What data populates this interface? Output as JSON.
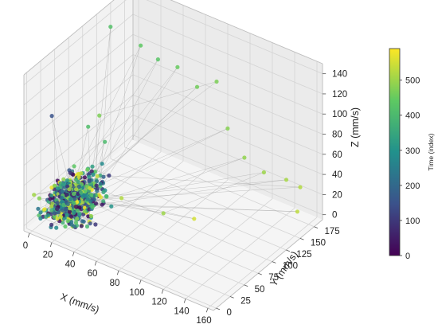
{
  "chart_data": {
    "type": "scatter",
    "projection": "3d",
    "title": "",
    "xlabel": "X (mm/s)",
    "ylabel": "Y (mm/s)",
    "zlabel": "Z (mm/s)",
    "xlim": [
      -5,
      165
    ],
    "ylim": [
      -5,
      190
    ],
    "zlim": [
      -5,
      150
    ],
    "xticks": [
      "0",
      "20",
      "40",
      "60",
      "80",
      "100",
      "120",
      "140",
      "160"
    ],
    "yticks": [
      "0",
      "25",
      "50",
      "75",
      "100",
      "125",
      "150",
      "175"
    ],
    "zticks": [
      "0",
      "20",
      "40",
      "60",
      "80",
      "100",
      "120",
      "140"
    ],
    "grid": true,
    "connecting_line": true,
    "colormap": "viridis",
    "colormap_stops": [
      "#440154",
      "#3b528b",
      "#21918c",
      "#5ec962",
      "#fde725"
    ],
    "color_value": "Time (index)",
    "colorbar": {
      "label": "Time (index)",
      "range": [
        0,
        590
      ],
      "ticks": [
        "0",
        "100",
        "200",
        "300",
        "400",
        "500"
      ],
      "placement": "right"
    },
    "n_points": 600,
    "cluster": {
      "x_range": [
        0,
        50
      ],
      "y_range": [
        0,
        100
      ],
      "z_range": [
        0,
        45
      ],
      "note": "dense cluster of low-velocity samples"
    },
    "outlier_points": [
      {
        "x": 5,
        "y": 130,
        "z": 140,
        "t": 420
      },
      {
        "x": 22,
        "y": 150,
        "z": 120,
        "t": 440
      },
      {
        "x": 35,
        "y": 155,
        "z": 110,
        "t": 430
      },
      {
        "x": 45,
        "y": 170,
        "z": 100,
        "t": 450
      },
      {
        "x": 60,
        "y": 175,
        "z": 85,
        "t": 460
      },
      {
        "x": 75,
        "y": 180,
        "z": 95,
        "t": 470
      },
      {
        "x": 90,
        "y": 170,
        "z": 60,
        "t": 480
      },
      {
        "x": 110,
        "y": 160,
        "z": 45,
        "t": 490
      },
      {
        "x": 125,
        "y": 165,
        "z": 35,
        "t": 500
      },
      {
        "x": 140,
        "y": 175,
        "z": 30,
        "t": 510
      },
      {
        "x": 150,
        "y": 180,
        "z": 25,
        "t": 520
      },
      {
        "x": 155,
        "y": 165,
        "z": 10,
        "t": 530
      },
      {
        "x": 20,
        "y": 60,
        "z": 80,
        "t": 410
      },
      {
        "x": 30,
        "y": 70,
        "z": 65,
        "t": 405
      },
      {
        "x": 5,
        "y": 25,
        "z": 100,
        "t": 150
      },
      {
        "x": 15,
        "y": 90,
        "z": 75,
        "t": 470
      },
      {
        "x": 55,
        "y": 50,
        "z": 30,
        "t": 520
      },
      {
        "x": 80,
        "y": 75,
        "z": 15,
        "t": 500
      },
      {
        "x": 95,
        "y": 100,
        "z": 5,
        "t": 550
      }
    ]
  }
}
